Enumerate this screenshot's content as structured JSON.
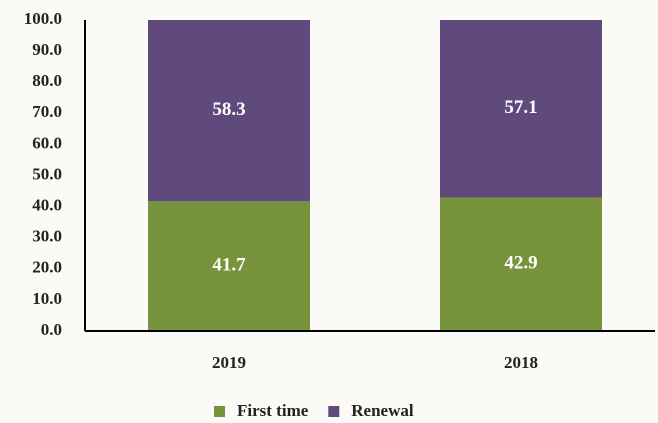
{
  "chart_data": {
    "type": "stacked_bar",
    "categories": [
      "2019",
      "2018"
    ],
    "series": [
      {
        "name": "First time",
        "color": "#77933c",
        "values": [
          41.7,
          42.9
        ]
      },
      {
        "name": "Renewal",
        "color": "#604a7b",
        "values": [
          58.3,
          57.1
        ]
      }
    ],
    "ylim": [
      0,
      100
    ],
    "yticks": [
      {
        "value": 0,
        "label": "0.0"
      },
      {
        "value": 10,
        "label": "10.0"
      },
      {
        "value": 20,
        "label": "20.0"
      },
      {
        "value": 30,
        "label": "30.0"
      },
      {
        "value": 40,
        "label": "40.0"
      },
      {
        "value": 50,
        "label": "50.0"
      },
      {
        "value": 60,
        "label": "60.0"
      },
      {
        "value": 70,
        "label": "70.0"
      },
      {
        "value": 80,
        "label": "80.0"
      },
      {
        "value": 90,
        "label": "90.0"
      },
      {
        "value": 100,
        "label": "100.0"
      }
    ],
    "grid": false,
    "legend": "bottom"
  }
}
